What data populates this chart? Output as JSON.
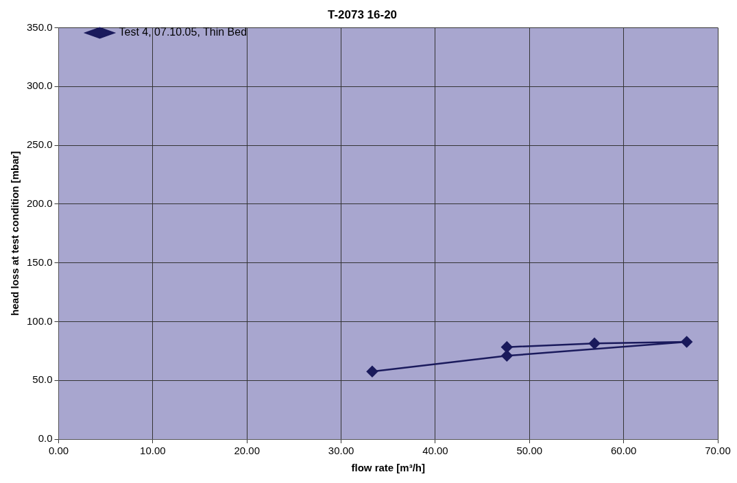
{
  "chart_data": {
    "type": "line",
    "title": "T-2073 16-20",
    "xlabel": "flow rate [m³/h]",
    "ylabel": "head loss at test condition [mbar]",
    "series": [
      {
        "name": "Test 4, 07.10.05, Thin Bed",
        "color": "#1a1a5c",
        "x": [
          33.3,
          47.6,
          66.7,
          56.9,
          47.6
        ],
        "values": [
          57.5,
          70.9,
          82.8,
          81.4,
          78.3
        ]
      }
    ],
    "xlim": [
      0,
      70
    ],
    "xticks": [
      {
        "value": 0,
        "label": "0.00"
      },
      {
        "value": 10,
        "label": "10.00"
      },
      {
        "value": 20,
        "label": "20.00"
      },
      {
        "value": 30,
        "label": "30.00"
      },
      {
        "value": 40,
        "label": "40.00"
      },
      {
        "value": 50,
        "label": "50.00"
      },
      {
        "value": 60,
        "label": "60.00"
      },
      {
        "value": 70,
        "label": "70.00"
      }
    ],
    "ylim": [
      0,
      350
    ],
    "yticks": [
      {
        "value": 0,
        "label": "0.0"
      },
      {
        "value": 50,
        "label": "50.0"
      },
      {
        "value": 100,
        "label": "100.0"
      },
      {
        "value": 150,
        "label": "150.0"
      },
      {
        "value": 200,
        "label": "200.0"
      },
      {
        "value": 250,
        "label": "250.0"
      },
      {
        "value": 300,
        "label": "300.0"
      },
      {
        "value": 350,
        "label": "350.0"
      }
    ],
    "grid": true,
    "legend": "top left",
    "marker": "diamond",
    "line_style": "solid"
  }
}
